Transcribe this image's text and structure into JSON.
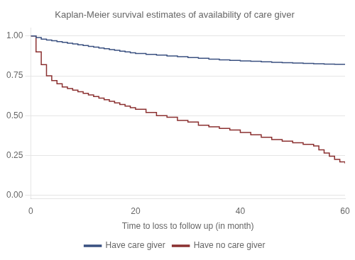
{
  "chart_data": {
    "type": "step",
    "title": "Kaplan-Meier survival estimates of availability of care giver",
    "xlabel": "Time to loss to follow up (in month)",
    "xlim": [
      0,
      60
    ],
    "ylim": [
      -0.02,
      1.05
    ],
    "xticks": [
      0,
      20,
      40,
      60
    ],
    "yticks": [
      {
        "value": 0.0,
        "label": "0.00"
      },
      {
        "value": 0.25,
        "label": "0.25"
      },
      {
        "value": 0.5,
        "label": "0.50"
      },
      {
        "value": 0.75,
        "label": "0.75"
      },
      {
        "value": 1.0,
        "label": "1.00"
      }
    ],
    "grid": "y",
    "legend": "bottom",
    "series": [
      {
        "name": "Have care giver",
        "color": "#3a5080",
        "x": [
          0,
          0.5,
          1,
          2,
          3,
          4,
          5,
          6,
          7,
          8,
          9,
          10,
          11,
          12,
          13,
          14,
          15,
          16,
          17,
          18,
          19,
          20,
          22,
          24,
          26,
          28,
          30,
          32,
          34,
          36,
          38,
          40,
          42,
          44,
          46,
          48,
          50,
          52,
          54,
          56,
          58,
          60
        ],
        "values": [
          1.0,
          1.0,
          0.99,
          0.98,
          0.975,
          0.97,
          0.965,
          0.96,
          0.955,
          0.95,
          0.945,
          0.94,
          0.935,
          0.93,
          0.925,
          0.92,
          0.915,
          0.91,
          0.905,
          0.9,
          0.895,
          0.89,
          0.885,
          0.88,
          0.875,
          0.87,
          0.865,
          0.86,
          0.855,
          0.85,
          0.847,
          0.844,
          0.841,
          0.838,
          0.835,
          0.832,
          0.83,
          0.828,
          0.826,
          0.824,
          0.822,
          0.82
        ]
      },
      {
        "name": "Have no care giver",
        "color": "#8b3030",
        "x": [
          0,
          1,
          2,
          3,
          4,
          5,
          6,
          7,
          8,
          9,
          10,
          11,
          12,
          13,
          14,
          15,
          16,
          17,
          18,
          19,
          20,
          22,
          24,
          26,
          28,
          30,
          32,
          34,
          36,
          38,
          40,
          42,
          44,
          46,
          48,
          50,
          52,
          54,
          55,
          56,
          57,
          58,
          59,
          60
        ],
        "values": [
          1.0,
          0.9,
          0.82,
          0.75,
          0.72,
          0.7,
          0.68,
          0.67,
          0.66,
          0.65,
          0.64,
          0.63,
          0.62,
          0.61,
          0.6,
          0.59,
          0.58,
          0.57,
          0.56,
          0.55,
          0.54,
          0.52,
          0.5,
          0.49,
          0.47,
          0.46,
          0.44,
          0.43,
          0.42,
          0.41,
          0.395,
          0.38,
          0.365,
          0.35,
          0.34,
          0.33,
          0.32,
          0.31,
          0.285,
          0.265,
          0.245,
          0.225,
          0.21,
          0.2
        ]
      }
    ]
  }
}
